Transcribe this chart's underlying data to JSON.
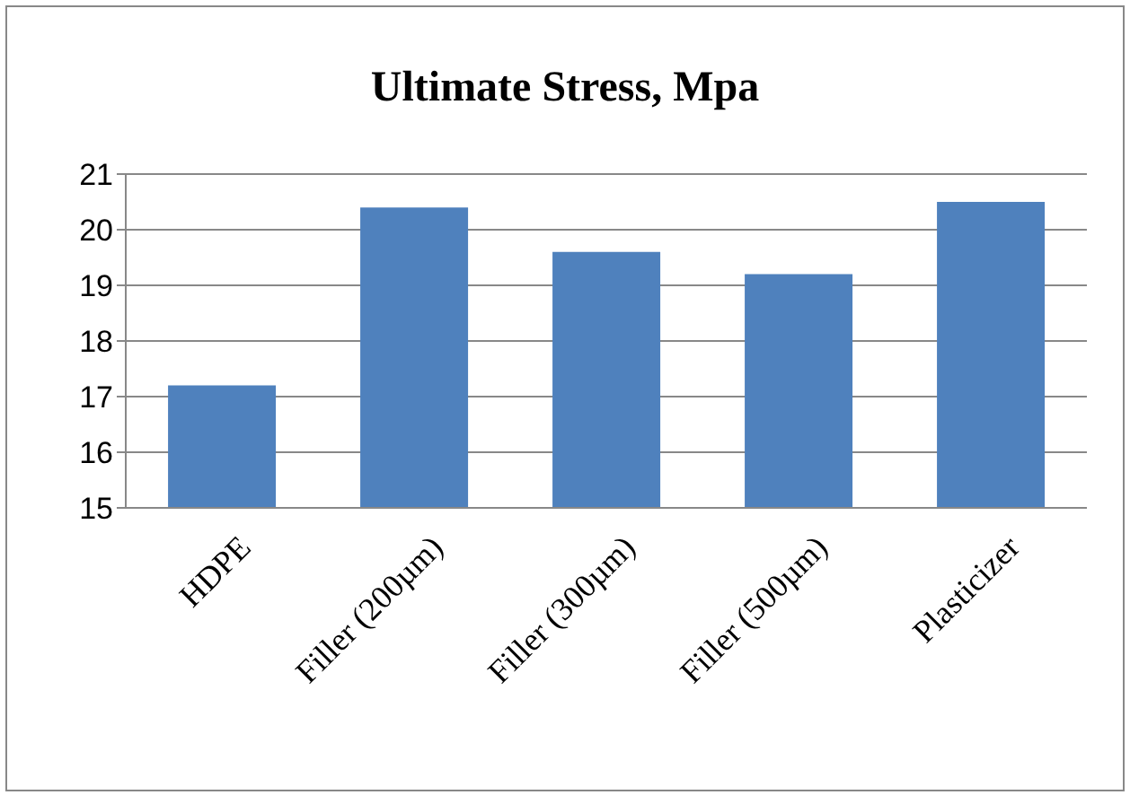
{
  "chart_data": {
    "type": "bar",
    "title": "Ultimate Stress, Mpa",
    "categories": [
      "HDPE",
      "Filler (200µm)",
      "Filler (300µm)",
      "Filler (500µm)",
      "Plasticizer"
    ],
    "values": [
      17.2,
      20.4,
      19.6,
      19.2,
      20.5
    ],
    "color": "#4f81bd",
    "ylim": [
      15,
      21
    ],
    "yticks": [
      15,
      16,
      17,
      18,
      19,
      20,
      21
    ],
    "grid": "y",
    "legend": false
  }
}
